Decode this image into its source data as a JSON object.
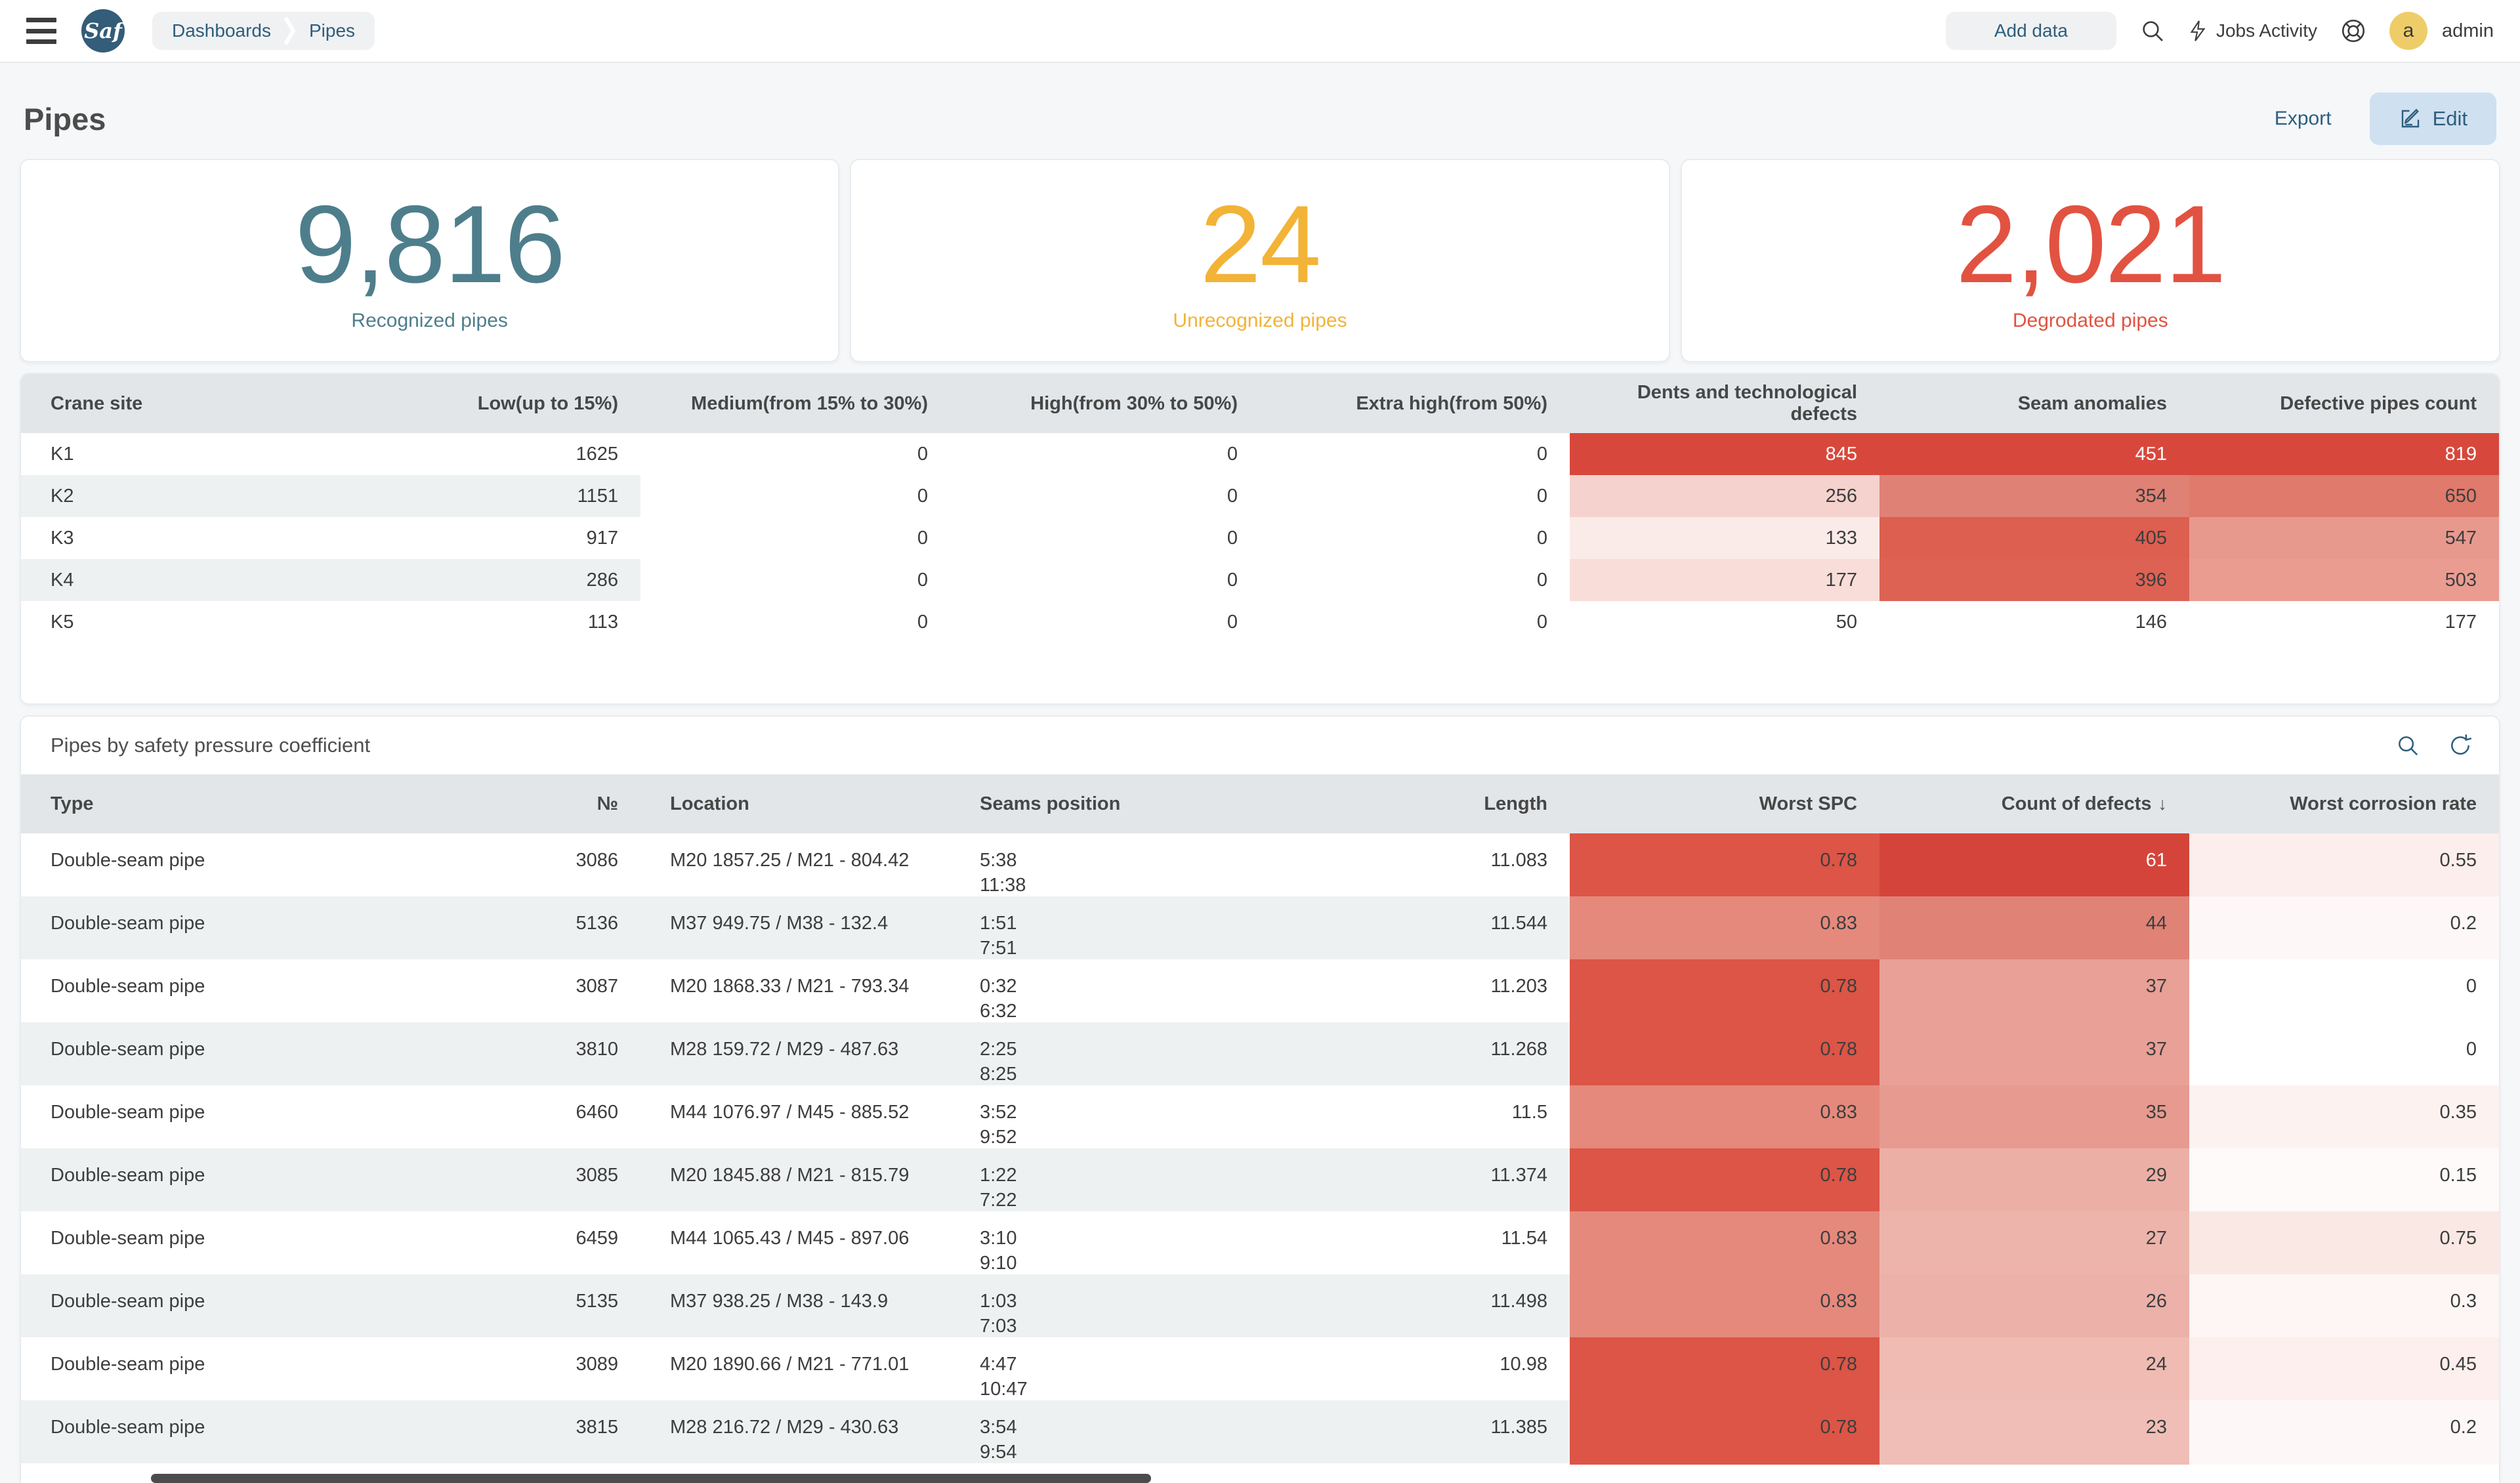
{
  "navbar": {
    "logo_text": "Saf",
    "breadcrumbs": [
      "Dashboards",
      "Pipes"
    ],
    "add_data_label": "Add data",
    "jobs_activity_label": "Jobs Activity",
    "avatar_letter": "a",
    "username": "admin"
  },
  "page": {
    "title": "Pipes",
    "export_label": "Export",
    "edit_label": "Edit"
  },
  "icons": {
    "menu": "hamburger",
    "search": "magnifier",
    "bolt": "lightning",
    "help": "lifebuoy",
    "edit": "pencil-square",
    "refresh": "circular-arrow",
    "sort_desc": "↓",
    "breadcrumb_sep": "chevron-right"
  },
  "colors": {
    "teal": "#4e7e8c",
    "yellow": "#f2b337",
    "red": "#e25241",
    "link": "#2d5e7d",
    "header_bg": "#e2e6e9",
    "stripe": "#eef1f2",
    "heat_strong": "#d8473c"
  },
  "kpis": [
    {
      "value": "9,816",
      "label": "Recognized pipes",
      "color": "#4e7e8c"
    },
    {
      "value": "24",
      "label": "Unrecognized pipes",
      "color": "#f2b337"
    },
    {
      "value": "2,021",
      "label": "Degrodated pipes",
      "color": "#e25241"
    }
  ],
  "crane_table": {
    "columns": [
      {
        "label": "Crane site",
        "align": "left"
      },
      {
        "label": "Low(up to 15%)",
        "align": "right"
      },
      {
        "label": "Medium(from 15% to 30%)",
        "align": "right"
      },
      {
        "label": "High(from 30% to 50%)",
        "align": "right"
      },
      {
        "label": "Extra high(from 50%)",
        "align": "right"
      },
      {
        "label": "Dents and technological defects",
        "align": "right"
      },
      {
        "label": "Seam anomalies",
        "align": "right"
      },
      {
        "label": "Defective pipes count",
        "align": "right"
      }
    ],
    "rows": [
      {
        "striped": false,
        "cells": [
          "K1",
          "1625",
          {
            "text": "0",
            "bg": "#ffffff"
          },
          {
            "text": "0",
            "bg": "#ffffff"
          },
          {
            "text": "0",
            "bg": "#ffffff"
          },
          {
            "text": "845",
            "bg": "#d8473c",
            "fg": "#ffffff"
          },
          {
            "text": "451",
            "bg": "#d8473c",
            "fg": "#ffffff"
          },
          {
            "text": "819",
            "bg": "#d8473c",
            "fg": "#ffffff"
          }
        ]
      },
      {
        "striped": true,
        "cells": [
          "K2",
          "1151",
          {
            "text": "0",
            "bg": "#ffffff"
          },
          {
            "text": "0",
            "bg": "#ffffff"
          },
          {
            "text": "0",
            "bg": "#ffffff"
          },
          {
            "text": "256",
            "bg": "#f5d2cd"
          },
          {
            "text": "354",
            "bg": "#e08175"
          },
          {
            "text": "650",
            "bg": "#df7a6c"
          }
        ]
      },
      {
        "striped": false,
        "cells": [
          "K3",
          "917",
          {
            "text": "0",
            "bg": "#ffffff"
          },
          {
            "text": "0",
            "bg": "#ffffff"
          },
          {
            "text": "0",
            "bg": "#ffffff"
          },
          {
            "text": "133",
            "bg": "#fbebe8"
          },
          {
            "text": "405",
            "bg": "#dc5f50"
          },
          {
            "text": "547",
            "bg": "#e8998e"
          }
        ]
      },
      {
        "striped": true,
        "cells": [
          "K4",
          "286",
          {
            "text": "0",
            "bg": "#ffffff"
          },
          {
            "text": "0",
            "bg": "#ffffff"
          },
          {
            "text": "0",
            "bg": "#ffffff"
          },
          {
            "text": "177",
            "bg": "#f8ddd9"
          },
          {
            "text": "396",
            "bg": "#dd6253"
          },
          {
            "text": "503",
            "bg": "#ea9c91"
          }
        ]
      },
      {
        "striped": false,
        "cells": [
          "K5",
          "113",
          {
            "text": "0",
            "bg": "#ffffff"
          },
          {
            "text": "0",
            "bg": "#ffffff"
          },
          {
            "text": "0",
            "bg": "#ffffff"
          },
          {
            "text": "50",
            "bg": "#ffffff"
          },
          {
            "text": "146",
            "bg": "#ffffff"
          },
          {
            "text": "177",
            "bg": "#ffffff"
          }
        ]
      }
    ]
  },
  "spc_table": {
    "title": "Pipes by safety pressure coefficient",
    "columns": [
      {
        "label": "Type",
        "align": "left"
      },
      {
        "label": "№",
        "align": "right"
      },
      {
        "label": "Location",
        "align": "left"
      },
      {
        "label": "Seams position",
        "align": "left"
      },
      {
        "label": "Length",
        "align": "right"
      },
      {
        "label": "Worst SPC",
        "align": "right"
      },
      {
        "label": "Count of defects",
        "align": "right",
        "sort": "desc"
      },
      {
        "label": "Worst corrosion rate",
        "align": "right"
      }
    ],
    "rows": [
      {
        "striped": false,
        "cells": [
          "Double-seam pipe",
          "3086",
          "M20 1857.25 / M21 - 804.42",
          [
            "5:38",
            "11:38"
          ],
          "11.083",
          {
            "text": "0.78",
            "bg": "#dc5546"
          },
          {
            "text": "61",
            "bg": "#d5443a",
            "fg": "#ffffff"
          },
          {
            "text": "0.55",
            "bg": "#fbeeec"
          }
        ]
      },
      {
        "striped": true,
        "cells": [
          "Double-seam pipe",
          "5136",
          "M37 949.75 / M38 - 132.4",
          [
            "1:51",
            "7:51"
          ],
          "11.544",
          {
            "text": "0.83",
            "bg": "#e5897d"
          },
          {
            "text": "44",
            "bg": "#e08276"
          },
          {
            "text": "0.2",
            "bg": "#fdf8f7"
          }
        ]
      },
      {
        "striped": false,
        "cells": [
          "Double-seam pipe",
          "3087",
          "M20 1868.33 / M21 - 793.34",
          [
            "0:32",
            "6:32"
          ],
          "11.203",
          {
            "text": "0.78",
            "bg": "#dc5546"
          },
          {
            "text": "37",
            "bg": "#e9a096"
          },
          {
            "text": "0",
            "bg": "#ffffff"
          }
        ]
      },
      {
        "striped": true,
        "cells": [
          "Double-seam pipe",
          "3810",
          "M28 159.72 / M29 - 487.63",
          [
            "2:25",
            "8:25"
          ],
          "11.268",
          {
            "text": "0.78",
            "bg": "#dc5546"
          },
          {
            "text": "37",
            "bg": "#e9a096"
          },
          {
            "text": "0",
            "bg": "#ffffff"
          }
        ]
      },
      {
        "striped": false,
        "cells": [
          "Double-seam pipe",
          "6460",
          "M44 1076.97 / M45 - 885.52",
          [
            "3:52",
            "9:52"
          ],
          "11.5",
          {
            "text": "0.83",
            "bg": "#e5897d"
          },
          {
            "text": "35",
            "bg": "#e79a8f"
          },
          {
            "text": "0.35",
            "bg": "#fcf3f1"
          }
        ]
      },
      {
        "striped": true,
        "cells": [
          "Double-seam pipe",
          "3085",
          "M20 1845.88 / M21 - 815.79",
          [
            "1:22",
            "7:22"
          ],
          "11.374",
          {
            "text": "0.78",
            "bg": "#dc5546"
          },
          {
            "text": "29",
            "bg": "#ecafa6"
          },
          {
            "text": "0.15",
            "bg": "#fefaf9"
          }
        ]
      },
      {
        "striped": false,
        "cells": [
          "Double-seam pipe",
          "6459",
          "M44 1065.43 / M45 - 897.06",
          [
            "3:10",
            "9:10"
          ],
          "11.54",
          {
            "text": "0.83",
            "bg": "#e5897d"
          },
          {
            "text": "27",
            "bg": "#edb4ab"
          },
          {
            "text": "0.75",
            "bg": "#fae8e4"
          }
        ]
      },
      {
        "striped": true,
        "cells": [
          "Double-seam pipe",
          "5135",
          "M37 938.25 / M38 - 143.9",
          [
            "1:03",
            "7:03"
          ],
          "11.498",
          {
            "text": "0.83",
            "bg": "#e5897d"
          },
          {
            "text": "26",
            "bg": "#ecb1a9"
          },
          {
            "text": "0.3",
            "bg": "#fdf6f5"
          }
        ]
      },
      {
        "striped": false,
        "cells": [
          "Double-seam pipe",
          "3089",
          "M20 1890.66 / M21 - 771.01",
          [
            "4:47",
            "10:47"
          ],
          "10.98",
          {
            "text": "0.78",
            "bg": "#dc5546"
          },
          {
            "text": "24",
            "bg": "#efbbb3"
          },
          {
            "text": "0.45",
            "bg": "#fcefed"
          }
        ]
      },
      {
        "striped": true,
        "cells": [
          "Double-seam pipe",
          "3815",
          "M28 216.72 / M29 - 430.63",
          [
            "3:54",
            "9:54"
          ],
          "11.385",
          {
            "text": "0.78",
            "bg": "#dc5546"
          },
          {
            "text": "23",
            "bg": "#f0beb6"
          },
          {
            "text": "0.2",
            "bg": "#fdf8f7"
          }
        ]
      }
    ]
  }
}
